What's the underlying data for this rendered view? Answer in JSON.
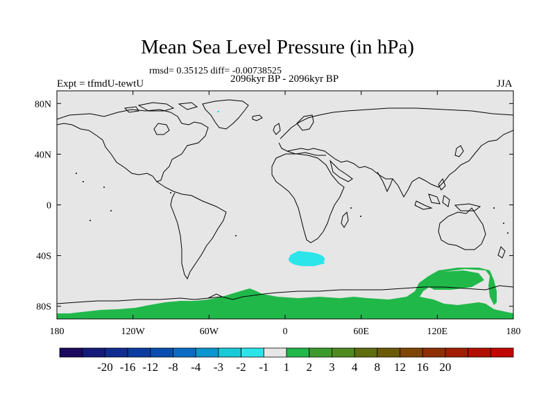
{
  "header": {
    "title": "Mean Sea Level Pressure (in hPa)",
    "stats": "rmsd= 0.35125 diff= -0.00738525",
    "period": "2096kyr BP - 2096kyr BP",
    "experiment": "Expt = tfmdU-tewtU",
    "season": "JJA"
  },
  "axes": {
    "lat_labels": [
      "80N",
      "40N",
      "0",
      "40S",
      "80S"
    ],
    "lat_values": [
      80,
      40,
      0,
      -40,
      -80
    ],
    "lon_labels": [
      "180",
      "120W",
      "60W",
      "0",
      "60E",
      "120E",
      "180"
    ],
    "lon_values": [
      -180,
      -120,
      -60,
      0,
      60,
      120,
      180
    ],
    "lat_range": [
      -90,
      90
    ],
    "lon_range": [
      -180,
      180
    ]
  },
  "colorbar": {
    "labels": [
      "-20",
      "-16",
      "-12",
      "-8",
      "-4",
      "-3",
      "-2",
      "-1",
      "1",
      "2",
      "3",
      "4",
      "8",
      "12",
      "16",
      "20"
    ],
    "colors": [
      "#1b0a5e",
      "#141a7a",
      "#102c90",
      "#0b3ca0",
      "#0a4fb0",
      "#0b6bc2",
      "#0c95cf",
      "#18c9d6",
      "#2ce5ea",
      "#e6e6e6",
      "#21b84a",
      "#3c9a2d",
      "#4f8a1e",
      "#5e6d0f",
      "#6b5a08",
      "#7e4504",
      "#8e2f02",
      "#a01d01",
      "#b10f00",
      "#c00600"
    ]
  },
  "map_colors": {
    "background": "#e6e6e6",
    "anomaly_negative": "#2ce5ea",
    "anomaly_positive": "#21b84a",
    "coastline": "#000000"
  },
  "regions": [
    {
      "name": "negative-anomaly-south-atlantic",
      "value_class": "-1"
    },
    {
      "name": "positive-anomaly-southern-ocean",
      "value_class": "2"
    }
  ]
}
